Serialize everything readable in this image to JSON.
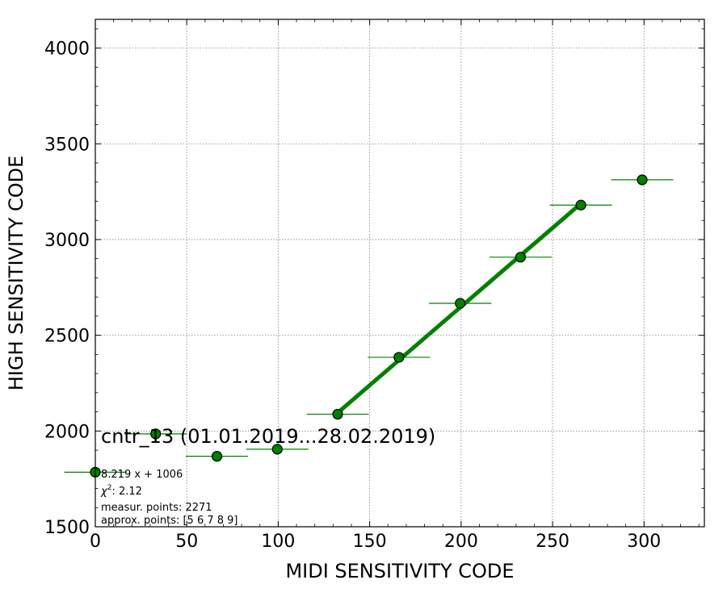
{
  "chart_data": {
    "type": "scatter",
    "xlabel": "MIDI SENSITIVITY CODE",
    "ylabel": "HIGH SENSITIVITY CODE",
    "xlim": [
      0,
      333
    ],
    "ylim": [
      1500,
      4150
    ],
    "x_ticks": [
      0,
      50,
      100,
      150,
      200,
      250,
      300
    ],
    "y_ticks": [
      1500,
      2000,
      2500,
      3000,
      3500,
      4000
    ],
    "grid": true,
    "points": [
      {
        "x": 0,
        "y": 1785,
        "xerr": 17
      },
      {
        "x": 33,
        "y": 1985,
        "xerr": 17
      },
      {
        "x": 66.5,
        "y": 1868,
        "xerr": 17
      },
      {
        "x": 99.5,
        "y": 1905,
        "xerr": 17
      },
      {
        "x": 132.5,
        "y": 2088,
        "xerr": 17
      },
      {
        "x": 166,
        "y": 2385,
        "xerr": 17
      },
      {
        "x": 199.5,
        "y": 2667,
        "xerr": 17
      },
      {
        "x": 232.5,
        "y": 2908,
        "xerr": 17
      },
      {
        "x": 265.5,
        "y": 3180,
        "xerr": 17
      },
      {
        "x": 299,
        "y": 3312,
        "xerr": 17
      }
    ],
    "fit_line": {
      "x": [
        132.5,
        265.5
      ],
      "slope": 8.219,
      "intercept": 1006
    },
    "colors": {
      "marker": "#008000",
      "fit": "#008000",
      "errorbar": "#008000",
      "marker_edge": "#000000"
    },
    "annotation": {
      "title": "cntr_13 (01.01.2019...28.02.2019)",
      "equation": "8.219 x + 1006",
      "chi_symbol": "χ",
      "chi_power": "2",
      "chi_value": ": 2.12",
      "points_line": "measur. points: 2271",
      "approx_line": "approx. points: [5 6 7 8 9]"
    }
  }
}
